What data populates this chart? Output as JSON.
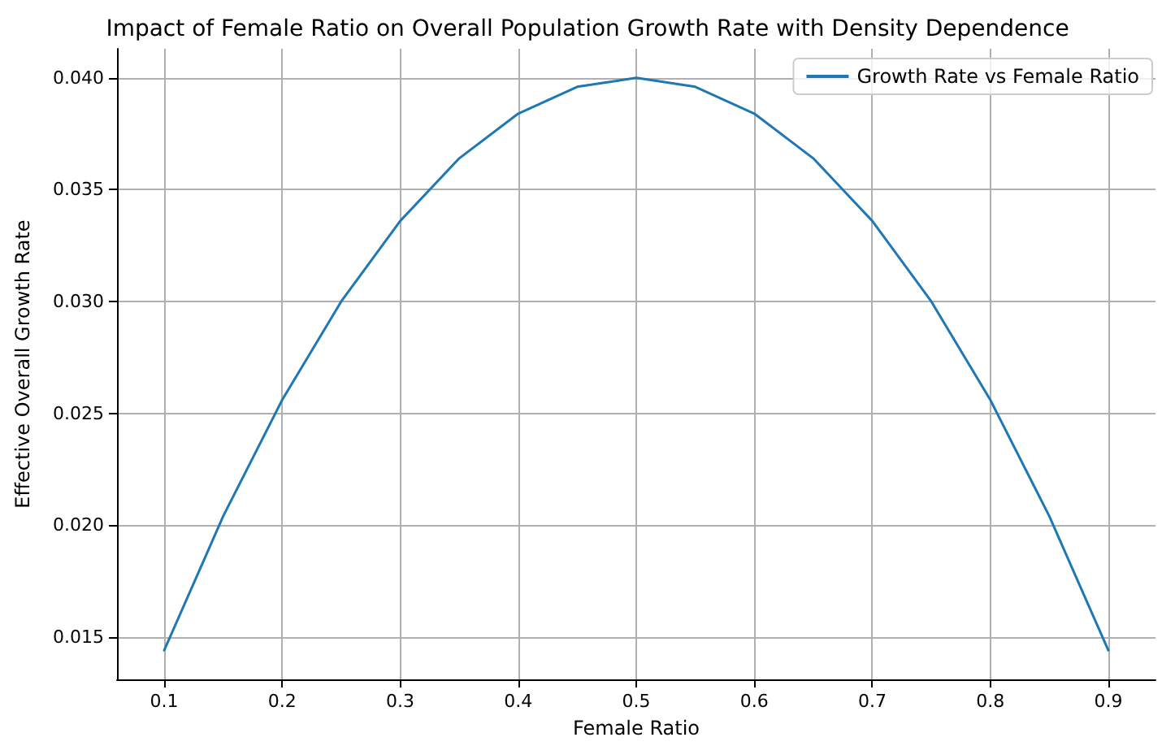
{
  "chart_data": {
    "type": "line",
    "title": "Impact of Female Ratio on Overall Population Growth Rate with Density Dependence",
    "xlabel": "Female Ratio",
    "ylabel": "Effective Overall Growth Rate",
    "series": [
      {
        "name": "Growth Rate vs Female Ratio",
        "color": "#1f77b4",
        "x": [
          0.1,
          0.15,
          0.2,
          0.25,
          0.3,
          0.35,
          0.4,
          0.45,
          0.5,
          0.55,
          0.6,
          0.65,
          0.7,
          0.75,
          0.8,
          0.85,
          0.9
        ],
        "values": [
          0.0144,
          0.0204,
          0.0256,
          0.03,
          0.0336,
          0.0364,
          0.0384,
          0.0396,
          0.04,
          0.0396,
          0.0384,
          0.0364,
          0.0336,
          0.03,
          0.0256,
          0.0204,
          0.0144
        ]
      }
    ],
    "xlim": [
      0.06,
      0.94
    ],
    "xticks": [
      0.1,
      0.2,
      0.3,
      0.4,
      0.5,
      0.6,
      0.7,
      0.8,
      0.9
    ],
    "ylim": [
      0.0131,
      0.0413
    ],
    "yticks": [
      {
        "value": 0.015,
        "label": "0.015"
      },
      {
        "value": 0.02,
        "label": "0.020"
      },
      {
        "value": 0.025,
        "label": "0.025"
      },
      {
        "value": 0.03,
        "label": "0.030"
      },
      {
        "value": 0.035,
        "label": "0.035"
      },
      {
        "value": 0.04,
        "label": "0.040"
      }
    ],
    "grid": true,
    "legend": "top right",
    "marker": "none",
    "line_style": "solid"
  }
}
